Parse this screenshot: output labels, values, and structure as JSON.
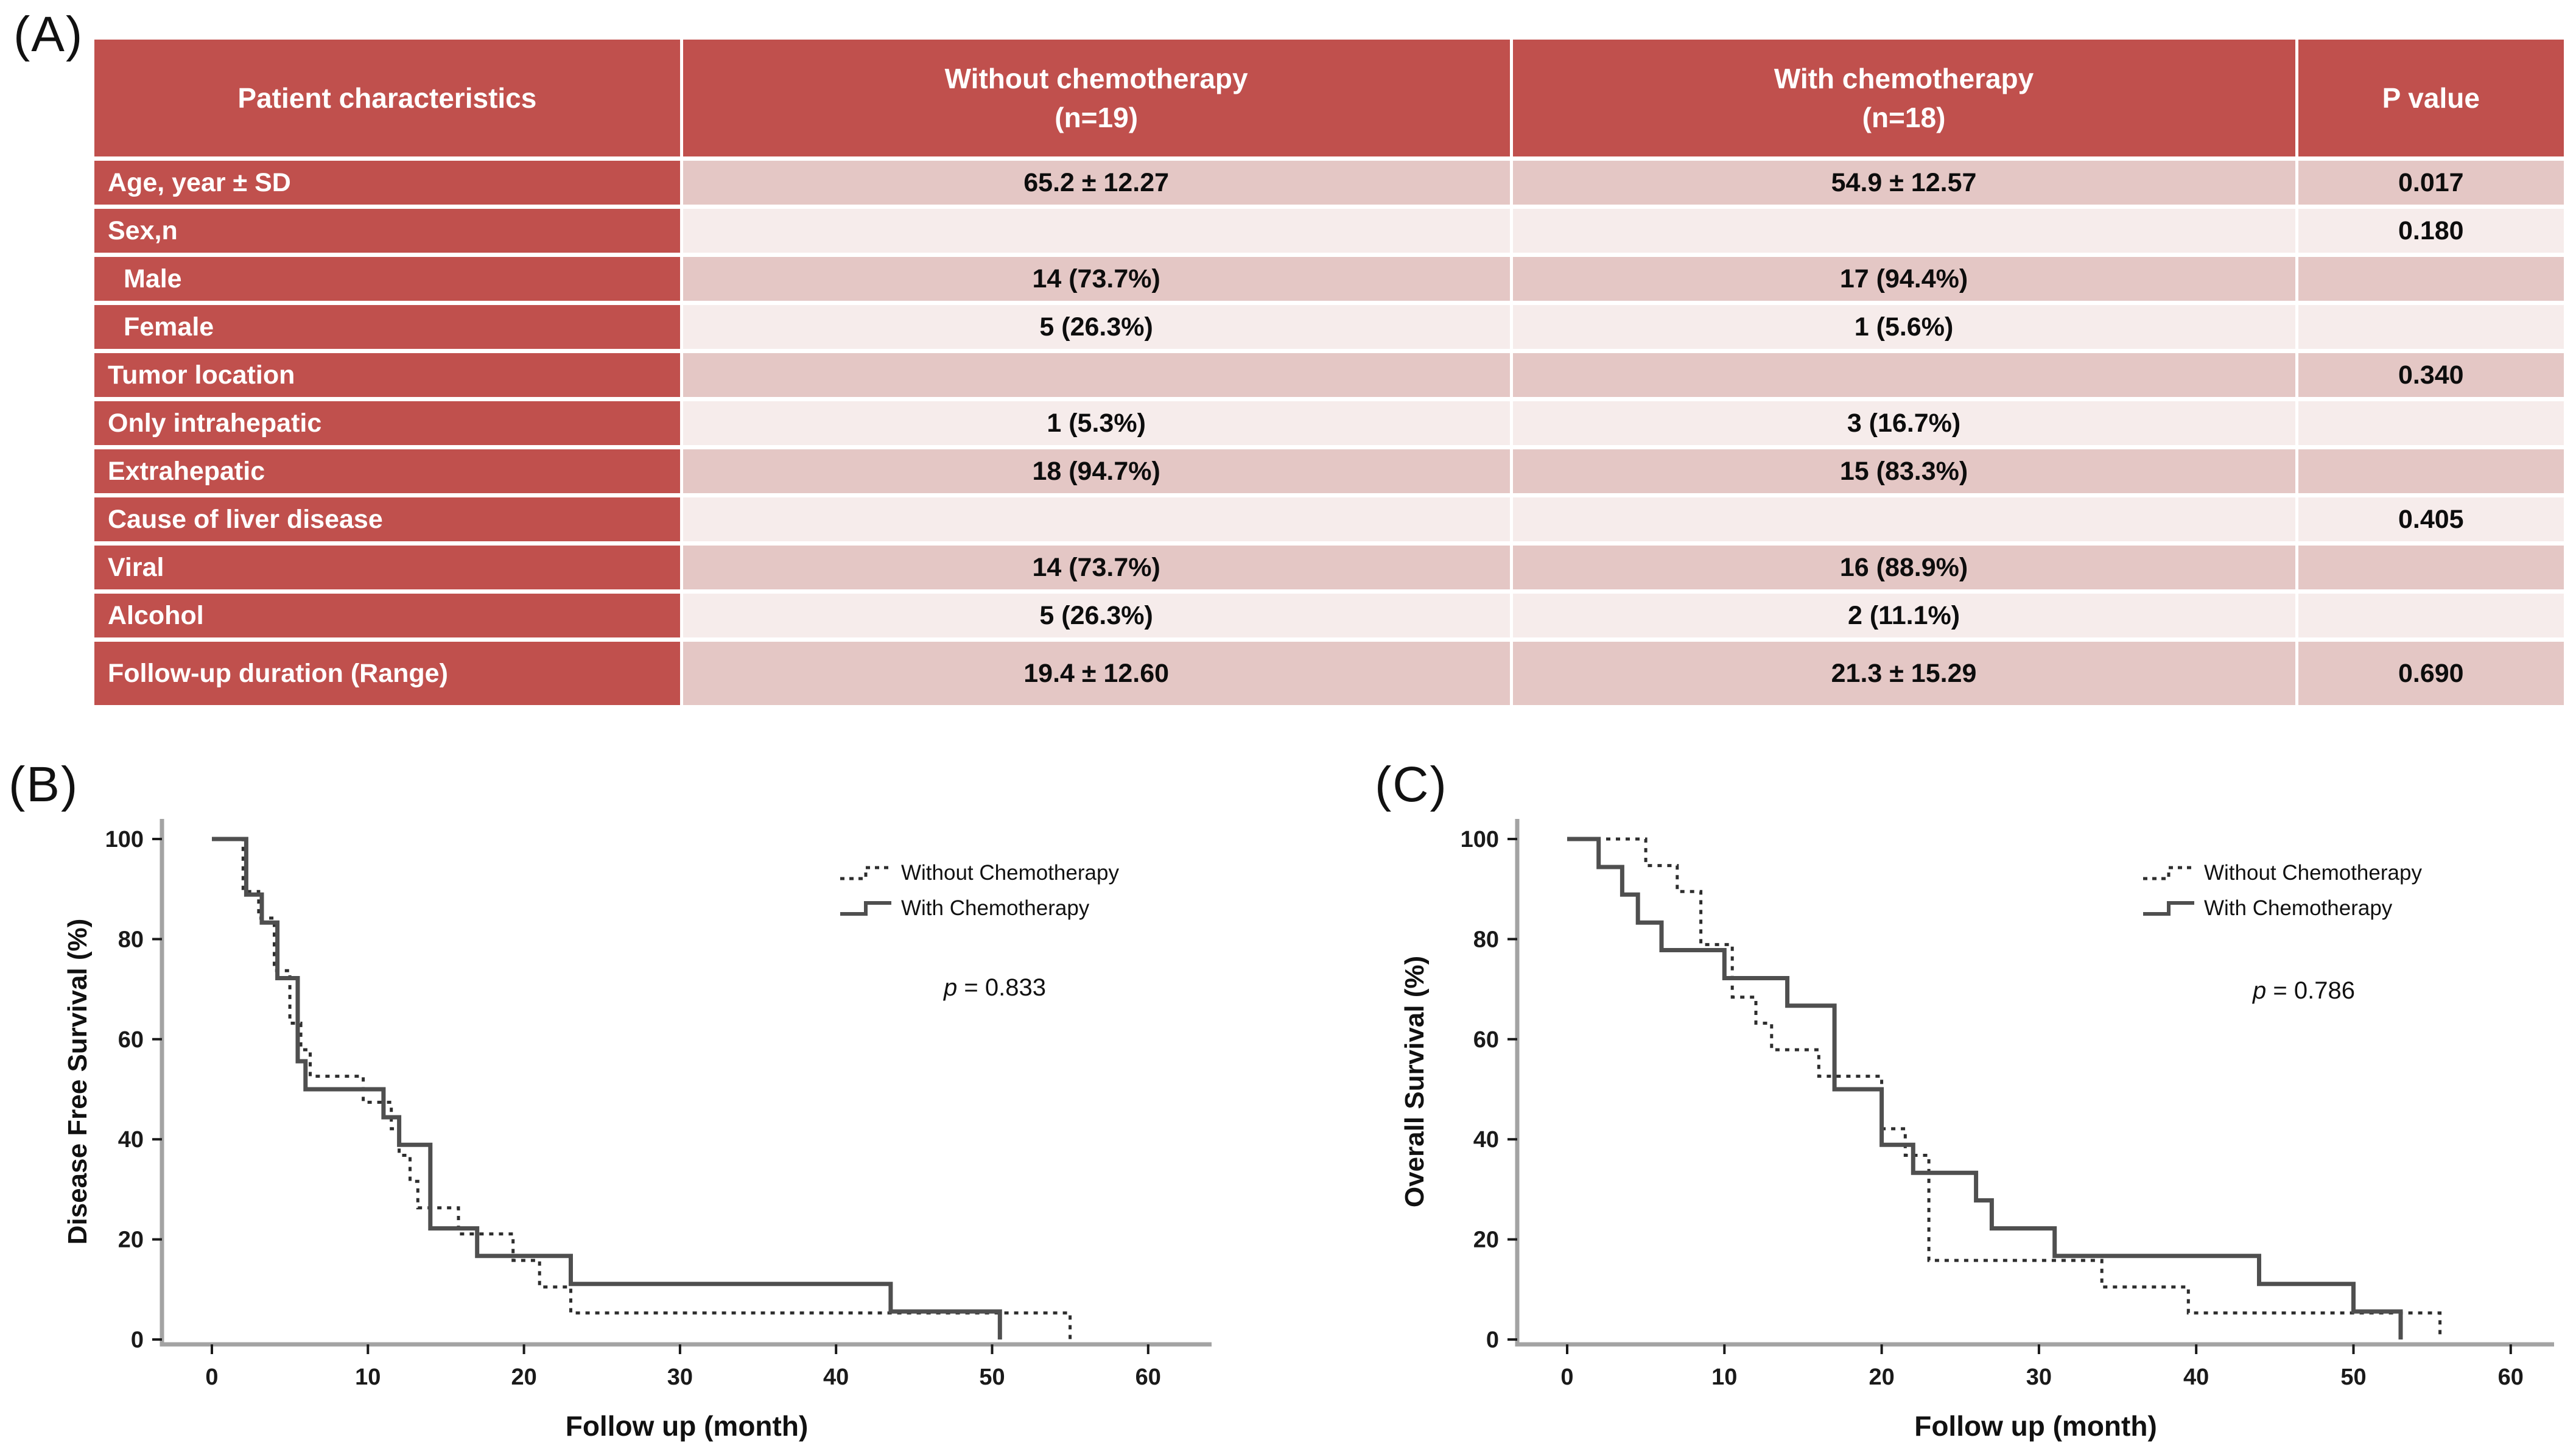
{
  "panels": {
    "a": "(A)",
    "b": "(B)",
    "c": "(C)"
  },
  "panel_a": {
    "table": {
      "col1_header": "Patient characteristics",
      "col2_header_line1": "Without chemotherapy",
      "col2_header_line2": "(n=19)",
      "col3_header_line1": "With chemotherapy",
      "col3_header_line2": "(n=18)",
      "col4_header": "P value",
      "rows": [
        {
          "label": "Age, year ± SD",
          "without": "65.2 ± 12.27",
          "with": "54.9 ± 12.57",
          "p": "0.017",
          "indent": false,
          "tall": false
        },
        {
          "label": "Sex,n",
          "without": "",
          "with": "",
          "p": "0.180",
          "indent": false,
          "tall": false
        },
        {
          "label": "Male",
          "without": "14 (73.7%)",
          "with": "17 (94.4%)",
          "p": "",
          "indent": true,
          "tall": false
        },
        {
          "label": "Female",
          "without": "5 (26.3%)",
          "with": "1 (5.6%)",
          "p": "",
          "indent": true,
          "tall": false
        },
        {
          "label": "Tumor location",
          "without": "",
          "with": "",
          "p": "0.340",
          "indent": false,
          "tall": false
        },
        {
          "label": "Only intrahepatic",
          "without": "1 (5.3%)",
          "with": "3 (16.7%)",
          "p": "",
          "indent": false,
          "tall": false
        },
        {
          "label": "Extrahepatic",
          "without": "18 (94.7%)",
          "with": "15 (83.3%)",
          "p": "",
          "indent": false,
          "tall": false
        },
        {
          "label": "Cause of liver disease",
          "without": "",
          "with": "",
          "p": "0.405",
          "indent": false,
          "tall": false
        },
        {
          "label": "Viral",
          "without": "14 (73.7%)",
          "with": "16 (88.9%)",
          "p": "",
          "indent": false,
          "tall": false
        },
        {
          "label": "Alcohol",
          "without": "5 (26.3%)",
          "with": "2 (11.1%)",
          "p": "",
          "indent": false,
          "tall": false
        },
        {
          "label": "Follow-up duration (Range)",
          "without": "19.4 ± 12.60",
          "with": "21.3 ± 15.29",
          "p": "0.690",
          "indent": false,
          "tall": true
        }
      ],
      "colors": {
        "header_red": "#c0504d",
        "band_dark": "#e4c7c5",
        "band_light": "#f6eceb"
      }
    }
  },
  "chart_data": [
    {
      "panel": "B",
      "type": "line",
      "subtype": "kaplan-meier-step",
      "ylabel": "Disease Free Survival (%)",
      "xlabel": "Follow up (month)",
      "xlim": [
        0,
        60
      ],
      "ylim": [
        0,
        100
      ],
      "xticks": [
        0,
        10,
        20,
        30,
        40,
        50,
        60
      ],
      "yticks": [
        0,
        20,
        40,
        60,
        80,
        100
      ],
      "grid": false,
      "legend_position": "upper right",
      "p_label": "p = 0.833",
      "series": [
        {
          "name": "Without Chemotherapy",
          "style": "dashed",
          "points": [
            [
              0,
              100
            ],
            [
              2,
              89.5
            ],
            [
              3,
              84.2
            ],
            [
              4,
              73.7
            ],
            [
              5,
              63.2
            ],
            [
              5.7,
              57.9
            ],
            [
              6.3,
              52.6
            ],
            [
              9.7,
              47.4
            ],
            [
              11.5,
              42.1
            ],
            [
              12,
              36.8
            ],
            [
              12.7,
              31.6
            ],
            [
              13.2,
              26.3
            ],
            [
              15.8,
              21.1
            ],
            [
              19.3,
              15.8
            ],
            [
              21,
              10.5
            ],
            [
              23,
              5.3
            ],
            [
              55,
              0
            ]
          ]
        },
        {
          "name": "With Chemotherapy",
          "style": "solid",
          "points": [
            [
              0,
              100
            ],
            [
              2.2,
              88.9
            ],
            [
              3.2,
              83.3
            ],
            [
              4.2,
              72.2
            ],
            [
              5.5,
              55.6
            ],
            [
              6,
              50
            ],
            [
              11,
              44.4
            ],
            [
              12,
              38.9
            ],
            [
              14,
              22.2
            ],
            [
              17,
              16.7
            ],
            [
              23,
              11.1
            ],
            [
              43.5,
              5.6
            ],
            [
              50.5,
              0
            ]
          ]
        }
      ]
    },
    {
      "panel": "C",
      "type": "line",
      "subtype": "kaplan-meier-step",
      "ylabel": "Overall Survival (%)",
      "xlabel": "Follow up (month)",
      "xlim": [
        0,
        60
      ],
      "ylim": [
        0,
        100
      ],
      "xticks": [
        0,
        10,
        20,
        30,
        40,
        50,
        60
      ],
      "yticks": [
        0,
        20,
        40,
        60,
        80,
        100
      ],
      "grid": false,
      "legend_position": "upper right",
      "p_label": "p = 0.786",
      "series": [
        {
          "name": "Without Chemotherapy",
          "style": "dashed",
          "points": [
            [
              0,
              100
            ],
            [
              5,
              94.7
            ],
            [
              7,
              89.5
            ],
            [
              8.5,
              78.9
            ],
            [
              10.5,
              68.4
            ],
            [
              12,
              63.2
            ],
            [
              13,
              57.9
            ],
            [
              16,
              52.6
            ],
            [
              20,
              42.1
            ],
            [
              21.5,
              36.8
            ],
            [
              23,
              15.8
            ],
            [
              34,
              10.5
            ],
            [
              39.5,
              5.3
            ],
            [
              55.5,
              0
            ]
          ]
        },
        {
          "name": "With Chemotherapy",
          "style": "solid",
          "points": [
            [
              0,
              100
            ],
            [
              2,
              94.4
            ],
            [
              3.5,
              88.9
            ],
            [
              4.5,
              83.3
            ],
            [
              6,
              77.8
            ],
            [
              10,
              72.2
            ],
            [
              14,
              66.7
            ],
            [
              17,
              50
            ],
            [
              20,
              38.9
            ],
            [
              22,
              33.3
            ],
            [
              26,
              27.8
            ],
            [
              27,
              22.2
            ],
            [
              31,
              16.7
            ],
            [
              44,
              11.1
            ],
            [
              50,
              5.6
            ],
            [
              53,
              0
            ]
          ]
        }
      ]
    }
  ],
  "plot_style": {
    "axis_color": "#a3a3a3",
    "tick_color": "#1a1a1a",
    "dashed_color": "#2e2e2e",
    "solid_color": "#4f4f4f"
  }
}
